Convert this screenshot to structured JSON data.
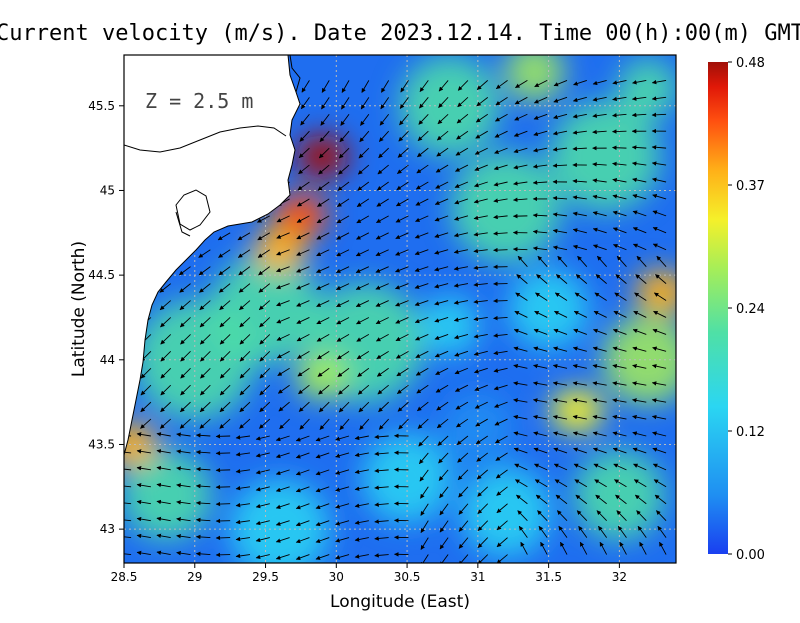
{
  "title": "Current velocity (m/s). Date 2023.12.14. Time 00(h):00(m) GMT",
  "depth_label": "Z = 2.5 m",
  "colors": {
    "land": "#ffffff",
    "coastline": "#000000",
    "grid": "#bbbbbb",
    "arrow": "#000000",
    "colorscale": [
      "#1a3ff0",
      "#1f8ff2",
      "#2bd6f2",
      "#4fe0a6",
      "#a6ee58",
      "#f5f02a",
      "#ffb018",
      "#ff5010",
      "#e01808",
      "#a01008"
    ]
  },
  "chart_data": {
    "type": "heatmap",
    "title": "Current velocity (m/s). Date 2023.12.14. Time 00(h):00(m) GMT",
    "xlabel": "Longitude (East)",
    "ylabel": "Latitude (North)",
    "xlim": [
      28.5,
      32.4
    ],
    "ylim": [
      42.8,
      45.8
    ],
    "xticks": [
      "28.5",
      "29",
      "29.5",
      "30",
      "30.5",
      "31",
      "31.5",
      "32"
    ],
    "yticks": [
      "43",
      "43.5",
      "44",
      "44.5",
      "45",
      "45.5"
    ],
    "grid": true,
    "colorbar": {
      "range": [
        0.0,
        0.48
      ],
      "ticks": [
        "0.48",
        "0.37",
        "0.24",
        "0.12",
        "0.00"
      ],
      "placement": "right"
    },
    "speed_hotspots": [
      {
        "lon": 29.9,
        "lat": 45.2,
        "speed": 0.46
      },
      {
        "lon": 29.75,
        "lat": 44.85,
        "speed": 0.38
      },
      {
        "lon": 29.6,
        "lat": 44.65,
        "speed": 0.33
      },
      {
        "lon": 28.55,
        "lat": 43.5,
        "speed": 0.3
      },
      {
        "lon": 32.3,
        "lat": 44.4,
        "speed": 0.3
      },
      {
        "lon": 31.7,
        "lat": 43.7,
        "speed": 0.26
      },
      {
        "lon": 29.9,
        "lat": 43.9,
        "speed": 0.22
      }
    ]
  }
}
